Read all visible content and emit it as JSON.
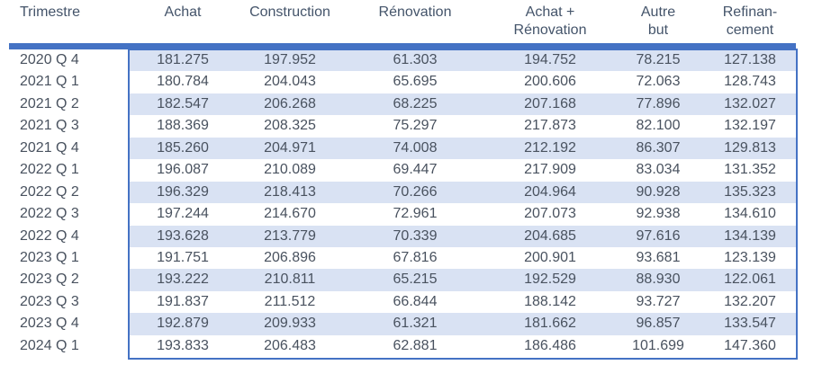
{
  "chart_data": {
    "type": "table",
    "columns": [
      {
        "id": "trimestre",
        "lines": [
          "Trimestre"
        ]
      },
      {
        "id": "achat",
        "lines": [
          "Achat"
        ]
      },
      {
        "id": "construction",
        "lines": [
          "Construction"
        ]
      },
      {
        "id": "renovation",
        "lines": [
          "Rénovation"
        ]
      },
      {
        "id": "achat-renovation",
        "lines": [
          "Achat +",
          "Rénovation"
        ]
      },
      {
        "id": "autre-but",
        "lines": [
          "Autre",
          "but"
        ]
      },
      {
        "id": "refinancement",
        "lines": [
          "Refinan-",
          "cement"
        ]
      }
    ],
    "rows": [
      {
        "label": "2020 Q 4",
        "values": [
          "181.275",
          "197.952",
          "61.303",
          "194.752",
          "78.215",
          "127.138"
        ]
      },
      {
        "label": "2021 Q 1",
        "values": [
          "180.784",
          "204.043",
          "65.695",
          "200.606",
          "72.063",
          "128.743"
        ]
      },
      {
        "label": "2021 Q 2",
        "values": [
          "182.547",
          "206.268",
          "68.225",
          "207.168",
          "77.896",
          "132.027"
        ]
      },
      {
        "label": "2021 Q 3",
        "values": [
          "188.369",
          "208.325",
          "75.297",
          "217.873",
          "82.100",
          "132.197"
        ]
      },
      {
        "label": "2021 Q 4",
        "values": [
          "185.260",
          "204.971",
          "74.008",
          "212.192",
          "86.307",
          "129.813"
        ]
      },
      {
        "label": "2022 Q 1",
        "values": [
          "196.087",
          "210.089",
          "69.447",
          "217.909",
          "83.034",
          "131.352"
        ]
      },
      {
        "label": "2022 Q 2",
        "values": [
          "196.329",
          "218.413",
          "70.266",
          "204.964",
          "90.928",
          "135.323"
        ]
      },
      {
        "label": "2022 Q 3",
        "values": [
          "197.244",
          "214.670",
          "72.961",
          "207.073",
          "92.938",
          "134.610"
        ]
      },
      {
        "label": "2022 Q 4",
        "values": [
          "193.628",
          "213.779",
          "70.339",
          "204.685",
          "97.616",
          "134.139"
        ]
      },
      {
        "label": "2023 Q 1",
        "values": [
          "191.751",
          "206.896",
          "67.816",
          "200.901",
          "93.681",
          "123.139"
        ]
      },
      {
        "label": "2023 Q 2",
        "values": [
          "193.222",
          "210.811",
          "65.215",
          "192.529",
          "88.930",
          "122.061"
        ]
      },
      {
        "label": "2023 Q 3",
        "values": [
          "191.837",
          "211.512",
          "66.844",
          "188.142",
          "93.727",
          "132.207"
        ]
      },
      {
        "label": "2023 Q 4",
        "values": [
          "192.879",
          "209.933",
          "61.321",
          "181.662",
          "96.857",
          "133.547"
        ]
      },
      {
        "label": "2024 Q 1",
        "values": [
          "193.833",
          "206.483",
          "62.881",
          "186.486",
          "101.699",
          "147.360"
        ]
      }
    ]
  },
  "colors": {
    "accent": "#4472C4",
    "stripe": "#D9E2F3",
    "header_text": "#44546A",
    "body_text": "#49525F",
    "background": "#FFFFFF"
  }
}
